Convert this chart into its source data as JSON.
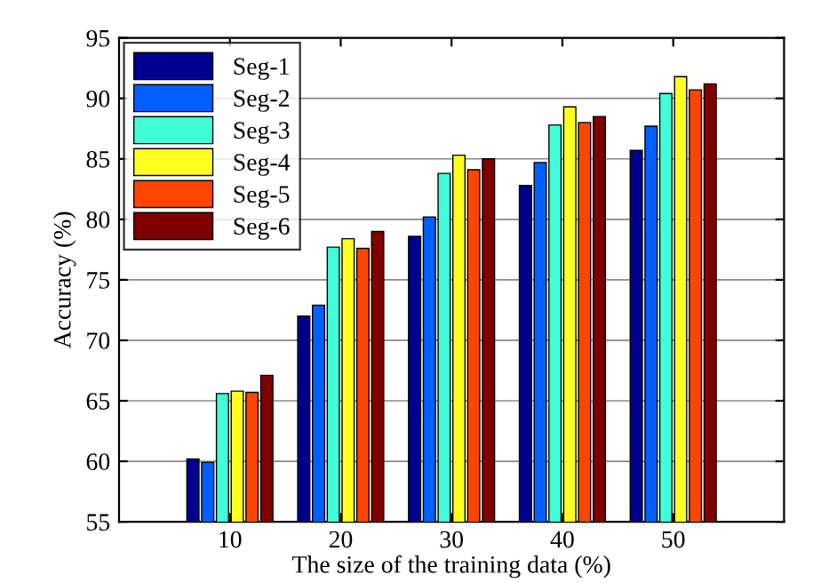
{
  "chart_data": {
    "type": "bar",
    "xlabel": "The size of the training data (%)",
    "ylabel": "Accuracy (%)",
    "x": [
      10,
      20,
      30,
      40,
      50
    ],
    "xlim": [
      0,
      60
    ],
    "xticks": [
      10,
      20,
      30,
      40,
      50
    ],
    "ylim": [
      55,
      95
    ],
    "yticks": [
      55,
      60,
      65,
      70,
      75,
      80,
      85,
      90,
      95
    ],
    "grid": "y",
    "legend": "top left",
    "series": [
      {
        "name": "Seg-1",
        "color": "#00008f",
        "values": [
          60.2,
          72.0,
          78.6,
          82.8,
          85.7
        ]
      },
      {
        "name": "Seg-2",
        "color": "#0060ff",
        "values": [
          59.9,
          72.9,
          80.2,
          84.7,
          87.7
        ]
      },
      {
        "name": "Seg-3",
        "color": "#40ffd8",
        "values": [
          65.6,
          77.7,
          83.8,
          87.8,
          90.4
        ]
      },
      {
        "name": "Seg-4",
        "color": "#ffff20",
        "values": [
          65.8,
          78.4,
          85.3,
          89.3,
          91.8
        ]
      },
      {
        "name": "Seg-5",
        "color": "#ff4500",
        "values": [
          65.7,
          77.6,
          84.1,
          88.0,
          90.7
        ]
      },
      {
        "name": "Seg-6",
        "color": "#800000",
        "values": [
          67.1,
          79.0,
          85.0,
          88.5,
          91.2
        ]
      }
    ]
  }
}
